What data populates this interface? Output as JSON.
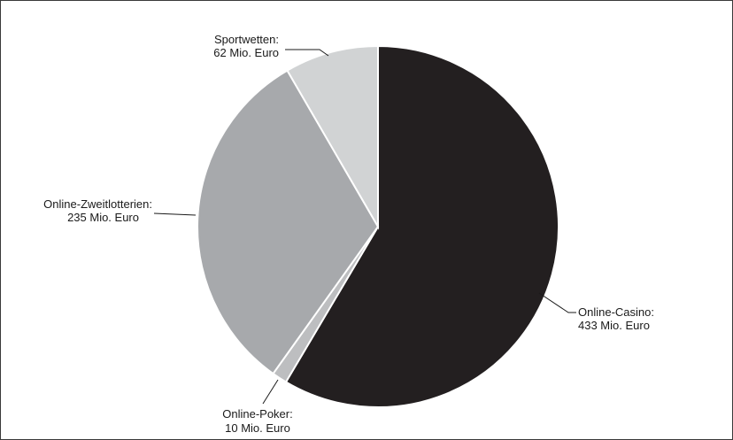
{
  "chart_data": {
    "type": "pie",
    "unit": "Mio. Euro",
    "slices": [
      {
        "name": "Online-Casino",
        "value": 433,
        "label_line1": "Online-Casino:",
        "label_line2": "433 Mio. Euro",
        "color": "#231f20"
      },
      {
        "name": "Online-Poker",
        "value": 10,
        "label_line1": "Online-Poker:",
        "label_line2": "10 Mio. Euro",
        "color": "#bdbec0"
      },
      {
        "name": "Online-Zweitlotterien",
        "value": 235,
        "label_line1": "Online-Zweitlotterien:",
        "label_line2": "235 Mio. Euro",
        "color": "#a7a9ac"
      },
      {
        "name": "Sportwetten",
        "value": 62,
        "label_line1": "Sportwetten:",
        "label_line2": "62 Mio. Euro",
        "color": "#d1d3d4"
      }
    ]
  }
}
